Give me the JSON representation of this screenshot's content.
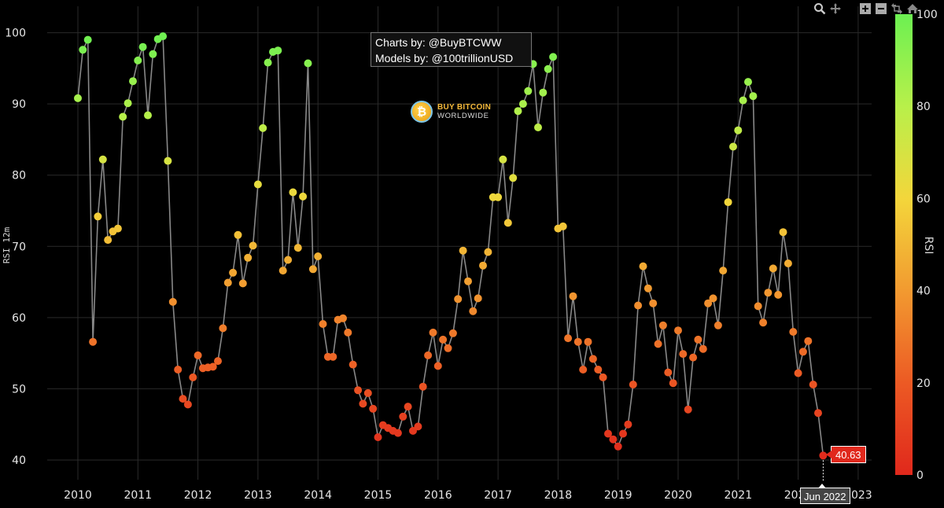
{
  "chart_data": {
    "type": "line",
    "ylabel": "RSI 12m",
    "colorbar_title": "RSI",
    "colorbar_ticks": [
      0,
      20,
      40,
      60,
      80,
      100
    ],
    "ylim": [
      37,
      102
    ],
    "yticks": [
      40,
      50,
      60,
      70,
      80,
      90,
      100
    ],
    "xlim": [
      2009.75,
      2023.15
    ],
    "xticks": [
      2010,
      2011,
      2012,
      2013,
      2014,
      2015,
      2016,
      2017,
      2018,
      2019,
      2020,
      2021,
      2022,
      2023
    ],
    "grid": true,
    "x": [
      2010.0,
      2010.083,
      2010.167,
      2010.25,
      2010.333,
      2010.417,
      2010.5,
      2010.583,
      2010.667,
      2010.75,
      2010.833,
      2010.917,
      2011.0,
      2011.083,
      2011.167,
      2011.25,
      2011.333,
      2011.417,
      2011.5,
      2011.583,
      2011.667,
      2011.75,
      2011.833,
      2011.917,
      2012.0,
      2012.083,
      2012.167,
      2012.25,
      2012.333,
      2012.417,
      2012.5,
      2012.583,
      2012.667,
      2012.75,
      2012.833,
      2012.917,
      2013.0,
      2013.083,
      2013.167,
      2013.25,
      2013.333,
      2013.417,
      2013.5,
      2013.583,
      2013.667,
      2013.75,
      2013.833,
      2013.917,
      2014.0,
      2014.083,
      2014.167,
      2014.25,
      2014.333,
      2014.417,
      2014.5,
      2014.583,
      2014.667,
      2014.75,
      2014.833,
      2014.917,
      2015.0,
      2015.083,
      2015.167,
      2015.25,
      2015.333,
      2015.417,
      2015.5,
      2015.583,
      2015.667,
      2015.75,
      2015.833,
      2015.917,
      2016.0,
      2016.083,
      2016.167,
      2016.25,
      2016.333,
      2016.417,
      2016.5,
      2016.583,
      2016.667,
      2016.75,
      2016.833,
      2016.917,
      2017.0,
      2017.083,
      2017.167,
      2017.25,
      2017.333,
      2017.417,
      2017.5,
      2017.583,
      2017.667,
      2017.75,
      2017.833,
      2017.917,
      2018.0,
      2018.083,
      2018.167,
      2018.25,
      2018.333,
      2018.417,
      2018.5,
      2018.583,
      2018.667,
      2018.75,
      2018.833,
      2018.917,
      2019.0,
      2019.083,
      2019.167,
      2019.25,
      2019.333,
      2019.417,
      2019.5,
      2019.583,
      2019.667,
      2019.75,
      2019.833,
      2019.917,
      2020.0,
      2020.083,
      2020.167,
      2020.25,
      2020.333,
      2020.417,
      2020.5,
      2020.583,
      2020.667,
      2020.75,
      2020.833,
      2020.917,
      2021.0,
      2021.083,
      2021.167,
      2021.25,
      2021.333,
      2021.417,
      2021.5,
      2021.583,
      2021.667,
      2021.75,
      2021.833,
      2021.917,
      2022.0,
      2022.083,
      2022.167,
      2022.25,
      2022.333,
      2022.417
    ],
    "y": [
      90.8,
      97.6,
      99.0,
      56.6,
      74.2,
      82.2,
      70.9,
      72.1,
      72.5,
      88.2,
      90.1,
      93.2,
      96.1,
      98.0,
      88.4,
      97.0,
      99.1,
      99.5,
      82.0,
      62.2,
      52.7,
      48.6,
      47.8,
      51.6,
      54.7,
      52.9,
      53.0,
      53.1,
      53.9,
      58.5,
      64.9,
      66.3,
      71.6,
      64.8,
      68.4,
      70.1,
      78.7,
      86.6,
      95.8,
      97.3,
      97.5,
      66.6,
      68.1,
      77.6,
      69.8,
      77.0,
      95.7,
      66.8,
      68.6,
      59.1,
      54.5,
      54.5,
      59.7,
      59.9,
      57.9,
      53.4,
      49.8,
      47.9,
      49.4,
      47.2,
      43.2,
      44.9,
      44.5,
      44.1,
      43.8,
      46.1,
      47.5,
      44.1,
      44.7,
      50.3,
      54.7,
      57.9,
      53.2,
      56.9,
      55.7,
      57.8,
      62.6,
      69.4,
      65.1,
      60.9,
      62.7,
      67.3,
      69.2,
      76.9,
      76.9,
      82.2,
      73.3,
      79.6,
      89.0,
      90.0,
      91.8,
      95.6,
      86.7,
      91.6,
      94.9,
      96.6,
      72.5,
      72.8,
      57.1,
      63.0,
      56.6,
      52.7,
      56.6,
      54.2,
      52.7,
      51.6,
      43.7,
      42.9,
      41.9,
      43.7,
      45.0,
      50.6,
      61.7,
      67.2,
      64.1,
      62.0,
      56.3,
      58.9,
      52.3,
      50.8,
      58.2,
      54.9,
      47.1,
      54.4,
      56.9,
      55.6,
      62.0,
      62.7,
      58.9,
      66.6,
      76.2,
      84.0,
      86.3,
      90.5,
      93.1,
      91.1,
      61.6,
      59.3,
      63.5,
      66.9,
      63.2,
      72.0,
      67.6,
      58.0,
      52.2,
      55.2,
      56.7,
      50.6,
      46.6,
      40.63
    ]
  },
  "credit": {
    "line1": "Charts by: @BuyBTCWW",
    "line2": "Models by: @100trillionUSD"
  },
  "logo": {
    "title": "BUY BITCOIN",
    "subtitle": "WORLDWIDE",
    "coin_symbol": "₿"
  },
  "hover": {
    "value": "40.63",
    "x_label": "Jun 2022"
  },
  "colors": {
    "background": "#000000",
    "line": "#888888",
    "grid": "#2a2a2a",
    "scale": [
      "#e0281c",
      "#f07a2a",
      "#f5c13a",
      "#e8f048",
      "#a8f04a",
      "#6cf052"
    ]
  }
}
